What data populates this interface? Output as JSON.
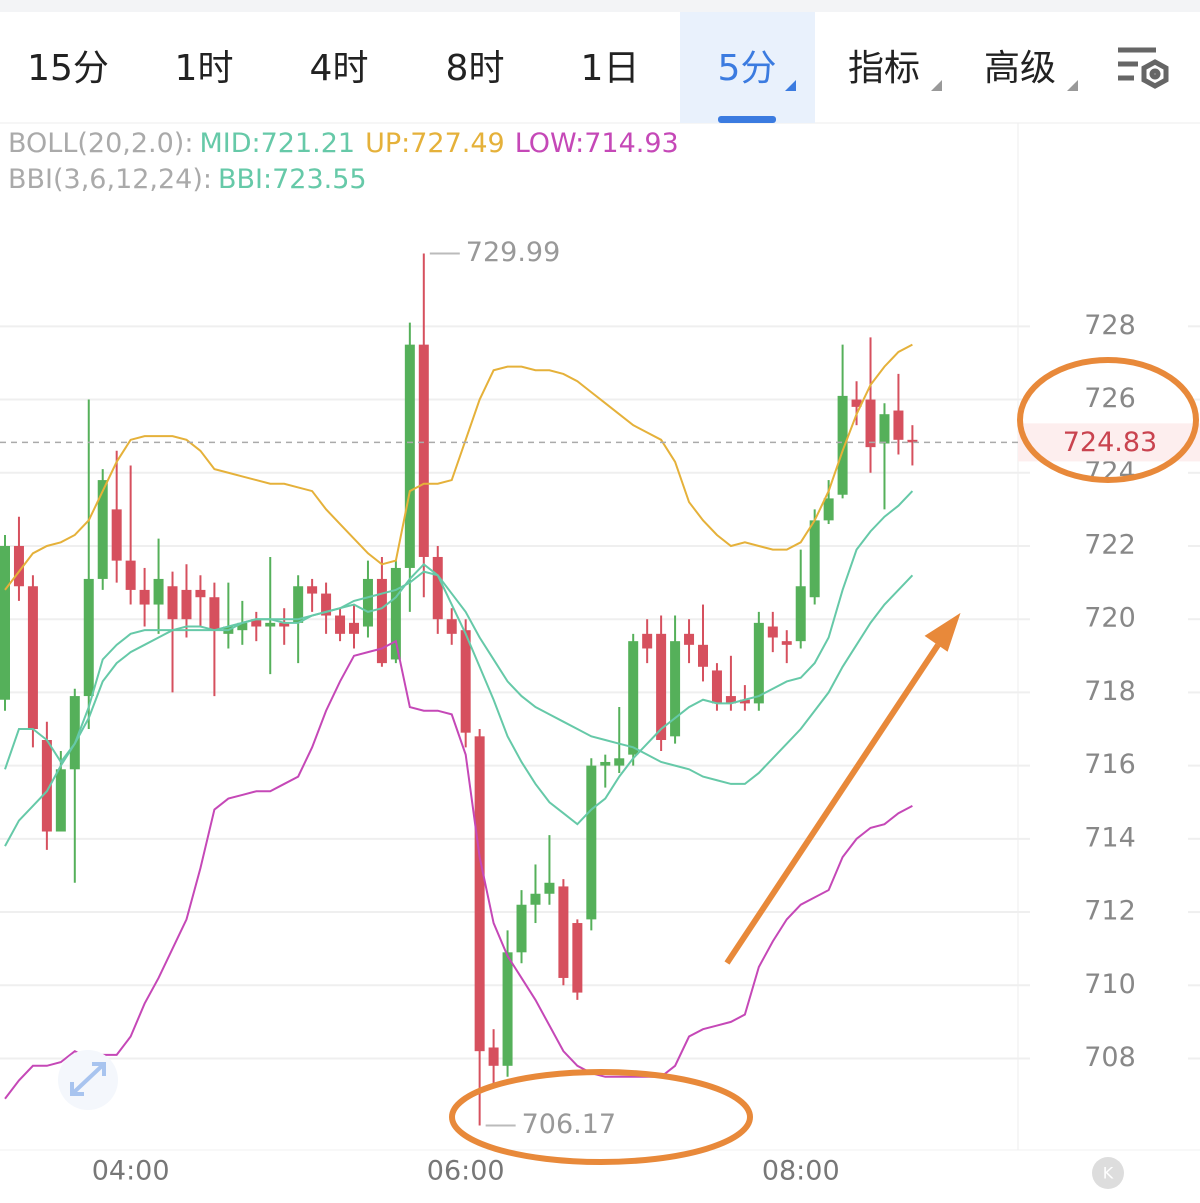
{
  "tabs": [
    "15分",
    "1时",
    "4时",
    "8时",
    "1日",
    "5分",
    "指标",
    "高级"
  ],
  "active_tab": 5,
  "chart_data": {
    "type": "candlestick",
    "indicators": [
      {
        "label": "BOLL(20,2.0):",
        "items": [
          {
            "name": "MID:",
            "value": 721.21,
            "color": "#66c9a8",
            "values": [
              713.8,
              714.5,
              714.9,
              715.3,
              716.0,
              716.6,
              717.3,
              718.3,
              718.8,
              719.1,
              719.3,
              719.5,
              719.7,
              719.7,
              719.7,
              719.7,
              719.8,
              719.9,
              720.0,
              720.0,
              720.0,
              720.0,
              720.1,
              720.2,
              720.3,
              720.5,
              720.6,
              720.7,
              720.8,
              721.0,
              721.3,
              721.2,
              720.7,
              720.2,
              719.5,
              718.9,
              718.3,
              717.9,
              717.6,
              717.4,
              717.2,
              717.0,
              716.8,
              716.7,
              716.6,
              716.5,
              716.3,
              716.1,
              716.0,
              715.9,
              715.7,
              715.6,
              715.5,
              715.5,
              715.8,
              716.2,
              716.6,
              717.0,
              717.5,
              718.0,
              718.7,
              719.3,
              719.9,
              720.4,
              720.8,
              721.2
            ]
          },
          {
            "name": "UP:",
            "value": 727.49,
            "color": "#e5b13a",
            "values": [
              720.8,
              721.3,
              721.8,
              722.0,
              722.1,
              722.3,
              722.7,
              723.5,
              724.3,
              724.9,
              725.0,
              725.0,
              725.0,
              724.9,
              724.6,
              724.1,
              724.0,
              723.9,
              723.8,
              723.7,
              723.7,
              723.6,
              723.5,
              723.0,
              722.6,
              722.2,
              721.8,
              721.5,
              721.6,
              723.5,
              723.7,
              723.7,
              723.8,
              724.9,
              726.0,
              726.8,
              726.9,
              726.9,
              726.8,
              726.8,
              726.7,
              726.5,
              726.2,
              725.9,
              725.6,
              725.3,
              725.1,
              724.9,
              724.3,
              723.2,
              722.7,
              722.3,
              722.0,
              722.1,
              722.0,
              721.9,
              721.9,
              722.1,
              722.7,
              723.5,
              724.6,
              725.6,
              726.4,
              726.9,
              727.3,
              727.5
            ]
          },
          {
            "name": "LOW:",
            "value": 714.93,
            "color": "#c548b7",
            "values": [
              706.9,
              707.4,
              707.8,
              707.8,
              707.9,
              708.2,
              708.0,
              708.1,
              708.1,
              708.6,
              709.5,
              710.2,
              711.0,
              711.8,
              713.2,
              714.8,
              715.1,
              715.2,
              715.3,
              715.3,
              715.5,
              715.7,
              716.5,
              717.5,
              718.3,
              719.0,
              719.1,
              719.2,
              719.4,
              717.6,
              717.5,
              717.5,
              717.4,
              716.3,
              713.5,
              711.7,
              710.8,
              710.2,
              709.6,
              708.9,
              708.2,
              707.8,
              707.6,
              707.5,
              707.5,
              707.5,
              707.5,
              707.5,
              707.8,
              708.6,
              708.8,
              708.9,
              709.0,
              709.2,
              710.5,
              711.2,
              711.8,
              712.2,
              712.4,
              712.6,
              713.5,
              714.0,
              714.3,
              714.4,
              714.7,
              714.9
            ]
          }
        ]
      },
      {
        "label": "BBI(3,6,12,24):",
        "items": [
          {
            "name": "BBI:",
            "value": 723.55,
            "color": "#66c9a8",
            "values": [
              715.9,
              717.0,
              717.0,
              716.7,
              716.1,
              716.6,
              717.6,
              718.9,
              719.3,
              719.6,
              719.7,
              719.7,
              719.7,
              719.8,
              719.8,
              719.7,
              719.7,
              719.9,
              720.0,
              720.0,
              719.9,
              719.9,
              720.1,
              720.2,
              720.3,
              720.4,
              720.2,
              720.3,
              720.6,
              721.1,
              721.5,
              721.2,
              720.4,
              719.6,
              718.7,
              717.8,
              716.8,
              716.1,
              715.5,
              715.0,
              714.7,
              714.4,
              714.8,
              715.1,
              715.7,
              716.2,
              716.6,
              717.0,
              717.3,
              717.6,
              717.8,
              717.7,
              717.7,
              717.8,
              717.9,
              718.1,
              718.3,
              718.4,
              718.8,
              719.5,
              720.8,
              721.9,
              722.4,
              722.8,
              723.1,
              723.5
            ]
          }
        ]
      }
    ],
    "categories": [
      null,
      null,
      null,
      null,
      null,
      null,
      null,
      null,
      null,
      "04:00",
      null,
      null,
      null,
      null,
      null,
      null,
      null,
      null,
      null,
      null,
      null,
      null,
      null,
      null,
      null,
      null,
      null,
      null,
      null,
      null,
      null,
      null,
      null,
      "06:00",
      null,
      null,
      null,
      null,
      null,
      null,
      null,
      null,
      null,
      null,
      null,
      null,
      null,
      null,
      null,
      null,
      null,
      null,
      null,
      null,
      null,
      null,
      null,
      "08:00",
      null,
      null,
      null,
      null,
      null,
      null,
      null,
      null
    ],
    "open": [
      717.8,
      722.0,
      720.9,
      716.7,
      714.2,
      715.9,
      717.9,
      721.1,
      723.0,
      721.6,
      720.8,
      720.4,
      720.9,
      720.8,
      720.8,
      720.6,
      719.6,
      719.7,
      720.0,
      719.8,
      719.9,
      719.9,
      720.9,
      720.7,
      720.1,
      719.9,
      719.8,
      721.1,
      718.9,
      721.4,
      727.5,
      721.7,
      720.0,
      719.7,
      716.8,
      708.3,
      707.8,
      710.9,
      712.2,
      712.5,
      712.7,
      711.7,
      711.8,
      716.0,
      716.0,
      716.3,
      719.6,
      719.6,
      716.8,
      719.6,
      719.3,
      718.6,
      717.9,
      717.8,
      717.7,
      719.8,
      719.4,
      719.4,
      720.6,
      722.7,
      723.4,
      726.0,
      726.0,
      724.8,
      725.7,
      724.9
    ],
    "high": [
      722.3,
      722.8,
      721.2,
      717.2,
      716.4,
      718.1,
      726.0,
      724.1,
      724.6,
      724.2,
      721.4,
      722.2,
      721.3,
      721.5,
      721.2,
      721.0,
      721.0,
      720.5,
      720.2,
      721.7,
      720.3,
      721.2,
      721.1,
      721.0,
      720.3,
      720.4,
      721.6,
      721.7,
      721.6,
      728.1,
      729.99,
      722.0,
      720.3,
      720.0,
      717.0,
      708.8,
      711.5,
      712.6,
      713.3,
      714.1,
      712.9,
      711.8,
      716.2,
      716.3,
      717.6,
      719.6,
      720.0,
      720.1,
      720.1,
      720.0,
      720.4,
      718.8,
      719.0,
      718.2,
      720.2,
      720.2,
      719.7,
      721.9,
      723.0,
      723.8,
      727.5,
      726.5,
      727.7,
      725.9,
      726.7,
      725.3
    ],
    "low": [
      717.5,
      720.5,
      716.5,
      713.7,
      714.2,
      712.8,
      717.0,
      720.8,
      721.0,
      720.4,
      719.8,
      719.6,
      718.0,
      719.5,
      719.8,
      717.9,
      719.2,
      719.3,
      719.4,
      718.5,
      719.3,
      718.8,
      720.2,
      719.6,
      719.4,
      719.2,
      719.5,
      718.7,
      718.8,
      720.2,
      720.6,
      719.6,
      719.3,
      716.5,
      706.17,
      707.3,
      707.5,
      710.6,
      711.7,
      712.2,
      710.0,
      709.6,
      711.5,
      715.4,
      715.8,
      716.0,
      718.8,
      716.4,
      716.6,
      718.8,
      718.3,
      717.5,
      717.5,
      717.5,
      717.5,
      719.1,
      718.8,
      719.2,
      720.4,
      722.6,
      723.3,
      725.3,
      724.0,
      723.0,
      724.5,
      724.2
    ],
    "close": [
      722.0,
      720.9,
      717.0,
      714.2,
      715.9,
      717.9,
      721.1,
      723.8,
      721.6,
      720.8,
      720.4,
      721.1,
      720.0,
      720.0,
      720.6,
      719.7,
      719.8,
      719.9,
      719.8,
      719.9,
      719.8,
      720.9,
      720.7,
      720.1,
      719.6,
      719.6,
      721.1,
      718.8,
      721.4,
      727.5,
      721.7,
      720.0,
      719.6,
      716.9,
      708.2,
      707.8,
      710.9,
      712.2,
      712.5,
      712.8,
      710.2,
      709.8,
      716.0,
      716.1,
      716.2,
      719.4,
      719.2,
      716.7,
      719.4,
      719.3,
      718.7,
      717.7,
      717.7,
      717.7,
      719.9,
      719.5,
      719.3,
      720.9,
      722.7,
      723.3,
      726.1,
      725.8,
      724.7,
      725.6,
      724.9,
      724.83
    ],
    "up_color": "#55b05a",
    "down_color": "#d6505e",
    "last_price": 724.83,
    "ylim": [
      705.5,
      733.5
    ],
    "yticks": [
      708,
      710,
      712,
      714,
      716,
      718,
      720,
      722,
      724,
      726,
      728
    ],
    "grid": true
  }
}
